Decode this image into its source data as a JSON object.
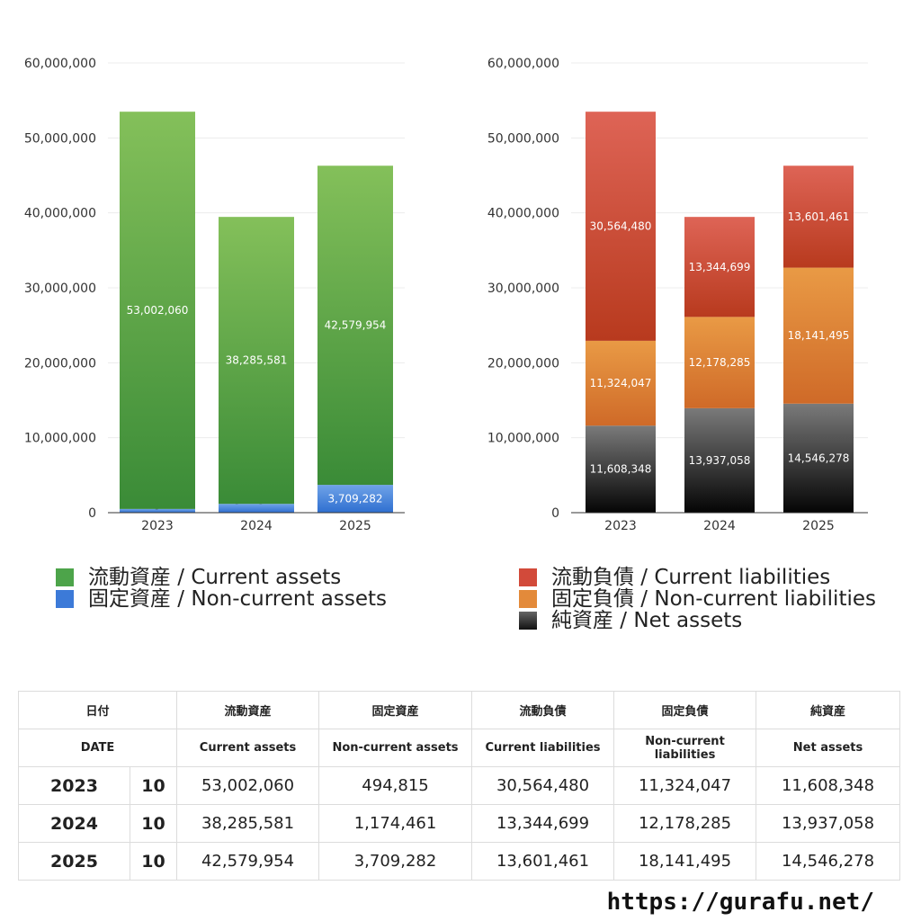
{
  "chart_data": [
    {
      "type": "bar",
      "stacked": true,
      "categories": [
        "2023",
        "2024",
        "2025"
      ],
      "ylim": [
        0,
        60000000
      ],
      "yticks": [
        "0",
        "10,000,000",
        "20,000,000",
        "30,000,000",
        "40,000,000",
        "50,000,000",
        "60,000,000"
      ],
      "grid": true,
      "series": [
        {
          "name": "固定資産 / Non-current assets",
          "values": [
            494815,
            1174461,
            3709282
          ],
          "labels": [
            "494,815",
            "1,174,461",
            "3,709,282"
          ],
          "color_top": "#6fa3e8",
          "color_bottom": "#2f6fd0"
        },
        {
          "name": "流動資産 / Current assets",
          "values": [
            53002060,
            38285581,
            42579954
          ],
          "labels": [
            "53,002,060",
            "38,285,581",
            "42,579,954"
          ],
          "color_top": "#84c05a",
          "color_bottom": "#3a8b37"
        }
      ],
      "legend": [
        {
          "label": "流動資産 / Current assets",
          "color": "#4da44a"
        },
        {
          "label": "固定資産 / Non-current assets",
          "color": "#3c7ad8"
        }
      ],
      "legend_position": "bottom"
    },
    {
      "type": "bar",
      "stacked": true,
      "categories": [
        "2023",
        "2024",
        "2025"
      ],
      "ylim": [
        0,
        60000000
      ],
      "yticks": [
        "0",
        "10,000,000",
        "20,000,000",
        "30,000,000",
        "40,000,000",
        "50,000,000",
        "60,000,000"
      ],
      "grid": true,
      "series": [
        {
          "name": "純資産 / Net assets",
          "values": [
            11608348,
            13937058,
            14546278
          ],
          "labels": [
            "11,608,348",
            "13,937,058",
            "14,546,278"
          ],
          "color_top": "#7a7a7a",
          "color_bottom": "#050505"
        },
        {
          "name": "固定負債 / Non-current liabilities",
          "values": [
            11324047,
            12178285,
            18141495
          ],
          "labels": [
            "11,324,047",
            "12,178,285",
            "18,141,495"
          ],
          "color_top": "#e99a45",
          "color_bottom": "#cf6a28"
        },
        {
          "name": "流動負債 / Current liabilities",
          "values": [
            30564480,
            13344699,
            13601461
          ],
          "labels": [
            "30,564,480",
            "13,344,699",
            "13,601,461"
          ],
          "color_top": "#de6456",
          "color_bottom": "#b83a1e"
        }
      ],
      "legend": [
        {
          "label": "流動負債 / Current liabilities",
          "color": "#d24a3a"
        },
        {
          "label": "固定負債 / Non-current liabilities",
          "color": "#e38a3a"
        },
        {
          "label": "純資産 / Net assets",
          "color": "#333333"
        }
      ],
      "legend_position": "bottom"
    }
  ],
  "table": {
    "header_jp": [
      "日付",
      "流動資産",
      "固定資産",
      "流動負債",
      "固定負債",
      "純資産"
    ],
    "header_en": [
      "DATE",
      "Current assets",
      "Non-current assets",
      "Current liabilities",
      "Non-current liabilities",
      "Net assets"
    ],
    "rows": [
      {
        "year": "2023",
        "month": "10",
        "cells": [
          "53,002,060",
          "494,815",
          "30,564,480",
          "11,324,047",
          "11,608,348"
        ]
      },
      {
        "year": "2024",
        "month": "10",
        "cells": [
          "38,285,581",
          "1,174,461",
          "13,344,699",
          "12,178,285",
          "13,937,058"
        ]
      },
      {
        "year": "2025",
        "month": "10",
        "cells": [
          "42,579,954",
          "3,709,282",
          "13,601,461",
          "18,141,495",
          "14,546,278"
        ]
      }
    ]
  },
  "footer": {
    "url": "https://gurafu.net/"
  }
}
